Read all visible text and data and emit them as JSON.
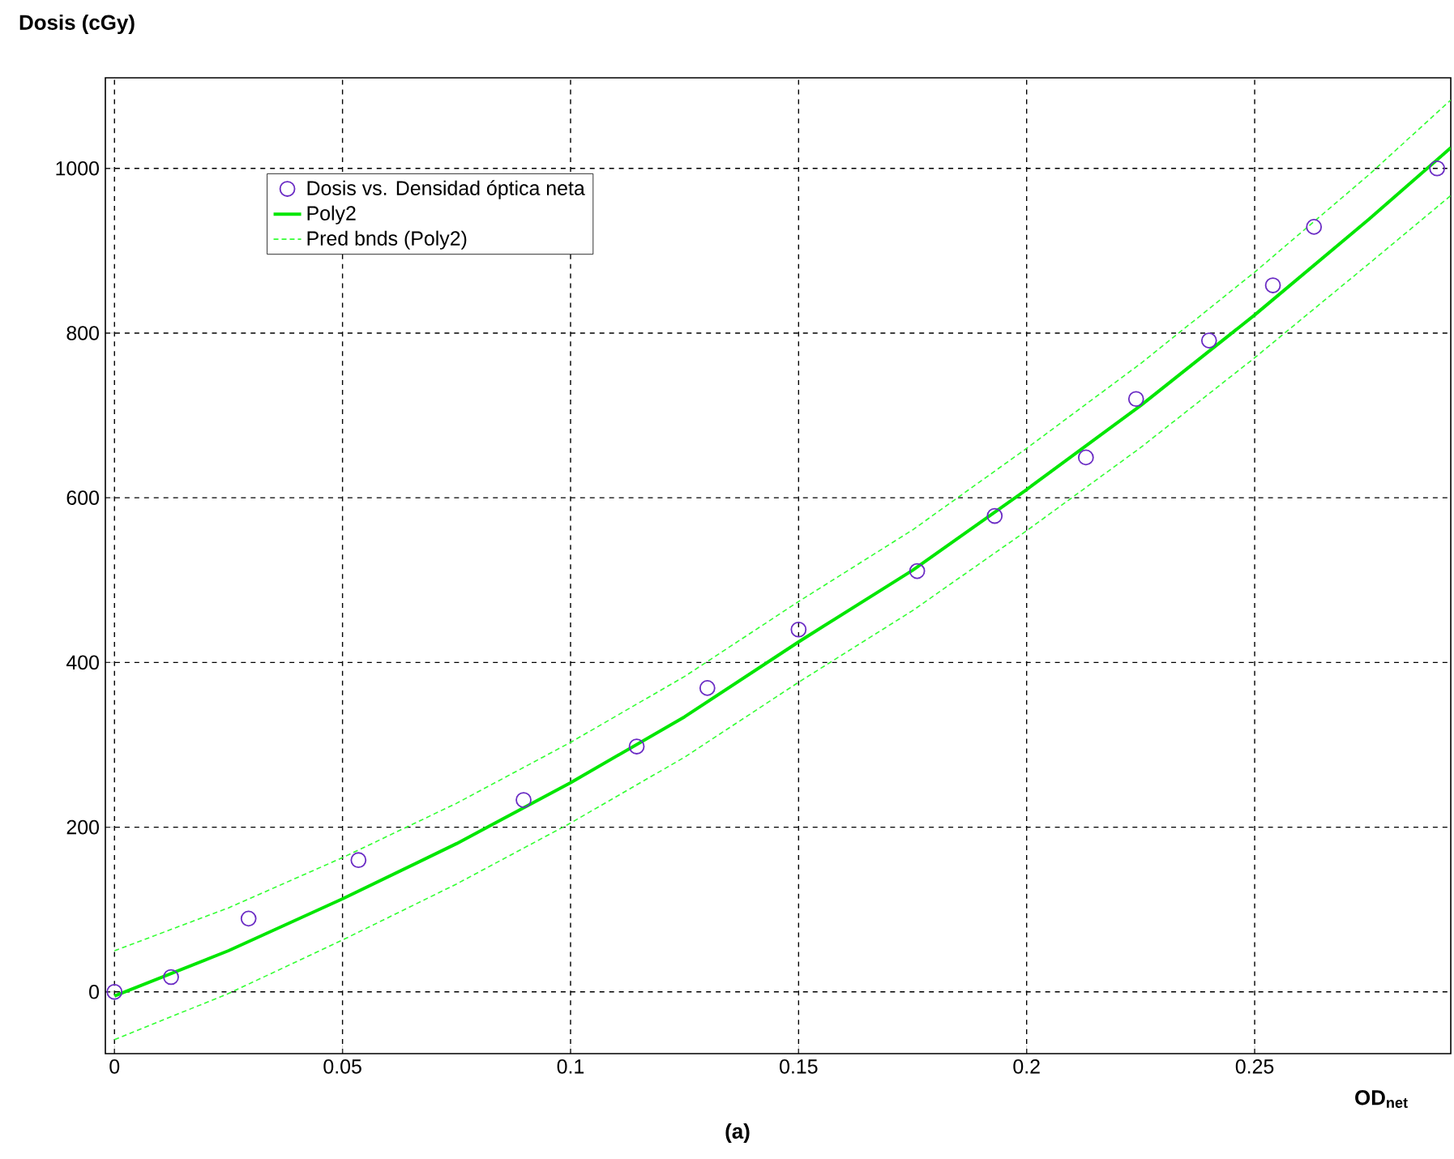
{
  "chart_data": {
    "type": "scatter",
    "ylabel": "Dosis (cGy)",
    "xlabel": "**OD**$_{net}$",
    "annotations": [
      "**(a)**"
    ],
    "xlim": [
      -0.002,
      0.293
    ],
    "ylim": [
      -75,
      1110
    ],
    "xticks": [
      0,
      0.05,
      0.1,
      0.15,
      0.2,
      0.25
    ],
    "yticks": [
      0,
      200,
      400,
      600,
      800,
      1000
    ],
    "grid": true,
    "legend": "top left",
    "series": [
      {
        "name": "Dosis vs. Densidad óptica neta",
        "color": "#6a2bc4",
        "marker": "circle",
        "x": [
          0,
          0.0124,
          0.0294,
          0.0535,
          0.0897,
          0.1145,
          0.13,
          0.15,
          0.176,
          0.193,
          0.213,
          0.224,
          0.24,
          0.254,
          0.263,
          0.29
        ],
        "values": [
          0,
          18,
          89,
          160,
          233,
          298,
          369,
          440,
          511,
          578,
          649,
          720,
          791,
          858,
          929,
          1000
        ]
      },
      {
        "type": "line",
        "name": "Poly2",
        "color": "#00e600",
        "line_style": "solid",
        "x": [
          0,
          0.025,
          0.05,
          0.075,
          0.1,
          0.125,
          0.15,
          0.175,
          0.2,
          0.225,
          0.25,
          0.275,
          0.293
        ],
        "values": [
          -5,
          50,
          113,
          180,
          254,
          334,
          425,
          512,
          610,
          712,
          822,
          938,
          1025
        ]
      },
      {
        "type": "line",
        "name": "Pred bnds (Poly2)",
        "color": "#33ff33",
        "line_style": "dashed",
        "x": [
          0,
          0.025,
          0.05,
          0.075,
          0.1,
          0.125,
          0.15,
          0.175,
          0.2,
          0.225,
          0.25,
          0.275,
          0.293
        ],
        "values": [
          50,
          102,
          163,
          229,
          303,
          383,
          474,
          561,
          660,
          763,
          874,
          992,
          1083
        ]
      },
      {
        "type": "line",
        "color": "#33ff33",
        "line_style": "dashed",
        "x": [
          0,
          0.025,
          0.05,
          0.075,
          0.1,
          0.125,
          0.15,
          0.175,
          0.2,
          0.225,
          0.25,
          0.275,
          0.293
        ],
        "values": [
          -58,
          -2,
          63,
          131,
          205,
          285,
          376,
          463,
          560,
          661,
          770,
          884,
          967
        ]
      }
    ]
  }
}
